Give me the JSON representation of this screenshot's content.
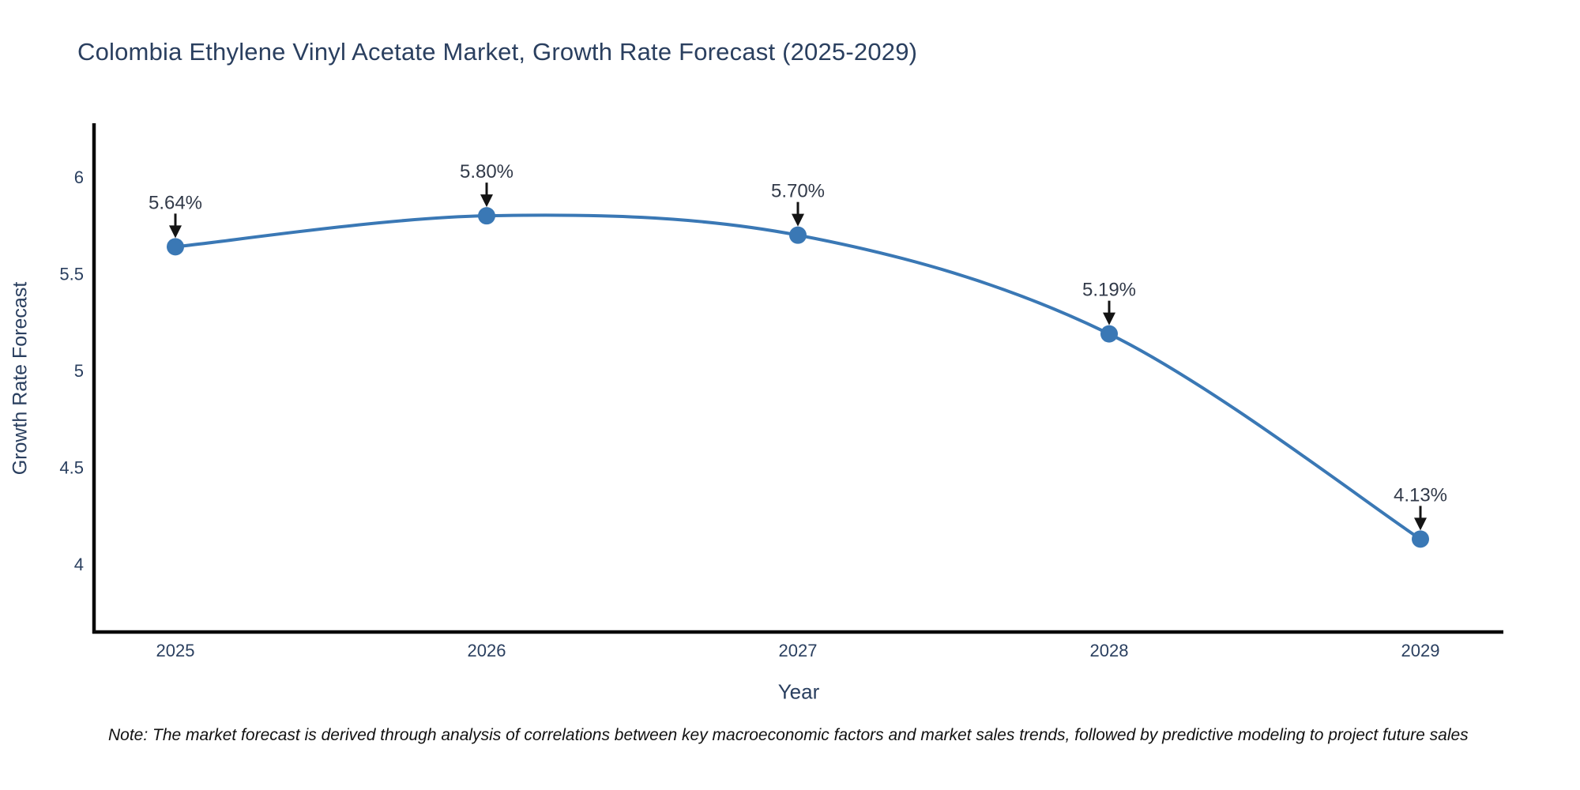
{
  "title": "Colombia Ethylene Vinyl Acetate Market, Growth Rate Forecast (2025-2029)",
  "note": "Note: The market forecast is derived through analysis of correlations between key macroeconomic factors and market sales trends, followed by predictive modeling to project future sales",
  "chart_data": {
    "type": "line",
    "title": "Colombia Ethylene Vinyl Acetate Market, Growth Rate Forecast (2025-2029)",
    "xlabel": "Year",
    "ylabel": "Growth Rate Forecast",
    "categories": [
      "2025",
      "2026",
      "2027",
      "2028",
      "2029"
    ],
    "series": [
      {
        "name": "Growth Rate Forecast",
        "values": [
          5.64,
          5.8,
          5.7,
          5.19,
          4.13
        ]
      }
    ],
    "point_labels": [
      "5.64%",
      "5.80%",
      "5.70%",
      "5.19%",
      "4.13%"
    ],
    "y_ticks": [
      4,
      4.5,
      5,
      5.5,
      6
    ],
    "ylim": [
      3.65,
      6.27
    ],
    "line_shape": "spline",
    "markers": true,
    "annotations_arrows": true,
    "grid": false,
    "legend_position": "none",
    "colors": {
      "line": "#3a78b5",
      "marker": "#3a78b5",
      "axis_spine": "#0a0a0a",
      "font": "#2a3f5f",
      "annotation_text": "#323a49",
      "arrow": "#141414",
      "background": "#ffffff"
    }
  }
}
